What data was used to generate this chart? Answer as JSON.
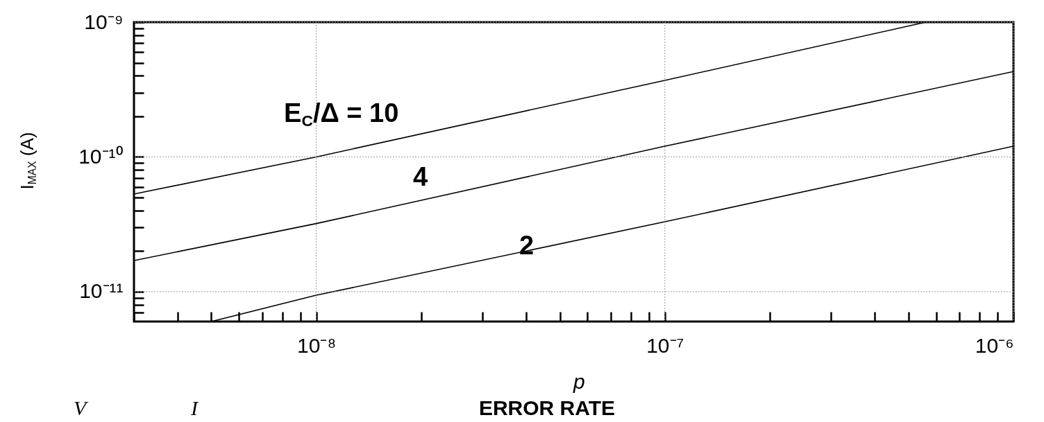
{
  "chart_data": {
    "type": "line",
    "xlabel": "ERROR RATE",
    "ylabel": "I$_{MAX}$ (A)",
    "log": "xy",
    "grid": true,
    "legend": false,
    "marker": "none",
    "line_style": "solid",
    "xlim": [
      3e-09,
      1e-06
    ],
    "ylim": [
      6e-12,
      1e-09
    ],
    "xticks": [
      {
        "value": 3e-09,
        "label": null
      },
      {
        "value": 4e-09,
        "label": null
      },
      {
        "value": 5e-09,
        "label": null
      },
      {
        "value": 6e-09,
        "label": null
      },
      {
        "value": 7e-09,
        "label": null
      },
      {
        "value": 8e-09,
        "label": null
      },
      {
        "value": 9e-09,
        "label": null
      },
      {
        "value": 1e-08,
        "label": "10⁻⁸"
      },
      {
        "value": 2e-08,
        "label": null
      },
      {
        "value": 3e-08,
        "label": null
      },
      {
        "value": 4e-08,
        "label": null
      },
      {
        "value": 5e-08,
        "label": null
      },
      {
        "value": 6e-08,
        "label": null
      },
      {
        "value": 7e-08,
        "label": null
      },
      {
        "value": 8e-08,
        "label": null
      },
      {
        "value": 9e-08,
        "label": null
      },
      {
        "value": 1e-07,
        "label": "10⁻⁷"
      },
      {
        "value": 2e-07,
        "label": null
      },
      {
        "value": 3e-07,
        "label": null
      },
      {
        "value": 4e-07,
        "label": null
      },
      {
        "value": 5e-07,
        "label": null
      },
      {
        "value": 6e-07,
        "label": null
      },
      {
        "value": 7e-07,
        "label": null
      },
      {
        "value": 8e-07,
        "label": null
      },
      {
        "value": 9e-07,
        "label": null
      },
      {
        "value": 1e-06,
        "label": "10⁻⁶"
      }
    ],
    "yticks": [
      {
        "value": 7e-12,
        "label": null
      },
      {
        "value": 8e-12,
        "label": null
      },
      {
        "value": 9e-12,
        "label": null
      },
      {
        "value": 1e-11,
        "label": "10⁻¹¹"
      },
      {
        "value": 2e-11,
        "label": null
      },
      {
        "value": 3e-11,
        "label": null
      },
      {
        "value": 4e-11,
        "label": null
      },
      {
        "value": 5e-11,
        "label": null
      },
      {
        "value": 6e-11,
        "label": null
      },
      {
        "value": 7e-11,
        "label": null
      },
      {
        "value": 8e-11,
        "label": null
      },
      {
        "value": 9e-11,
        "label": null
      },
      {
        "value": 1e-10,
        "label": "10⁻¹⁰"
      },
      {
        "value": 2e-10,
        "label": null
      },
      {
        "value": 3e-10,
        "label": null
      },
      {
        "value": 4e-10,
        "label": null
      },
      {
        "value": 5e-10,
        "label": null
      },
      {
        "value": 6e-10,
        "label": null
      },
      {
        "value": 7e-10,
        "label": null
      },
      {
        "value": 8e-10,
        "label": null
      },
      {
        "value": 9e-10,
        "label": null
      },
      {
        "value": 1e-09,
        "label": "10⁻⁹"
      }
    ],
    "series": [
      {
        "name": "E$_{C}$/Δ = 10",
        "color": "#000000",
        "x": [
          3e-09,
          1e-08,
          1e-07,
          5.6e-07
        ],
        "values": [
          5.3e-11,
          1e-10,
          3.7e-10,
          1e-09
        ]
      },
      {
        "name": "4",
        "color": "#000000",
        "x": [
          3e-09,
          1e-08,
          1e-07,
          1e-06
        ],
        "values": [
          1.7e-11,
          3.2e-11,
          1.2e-10,
          4.3e-10
        ]
      },
      {
        "name": "2",
        "color": "#000000",
        "x": [
          5e-09,
          1e-08,
          1e-07,
          1e-06
        ],
        "values": [
          6e-12,
          9.4e-12,
          3.3e-11,
          1.2e-10
        ]
      }
    ],
    "annotations": [
      "p",
      "V",
      "I"
    ]
  }
}
